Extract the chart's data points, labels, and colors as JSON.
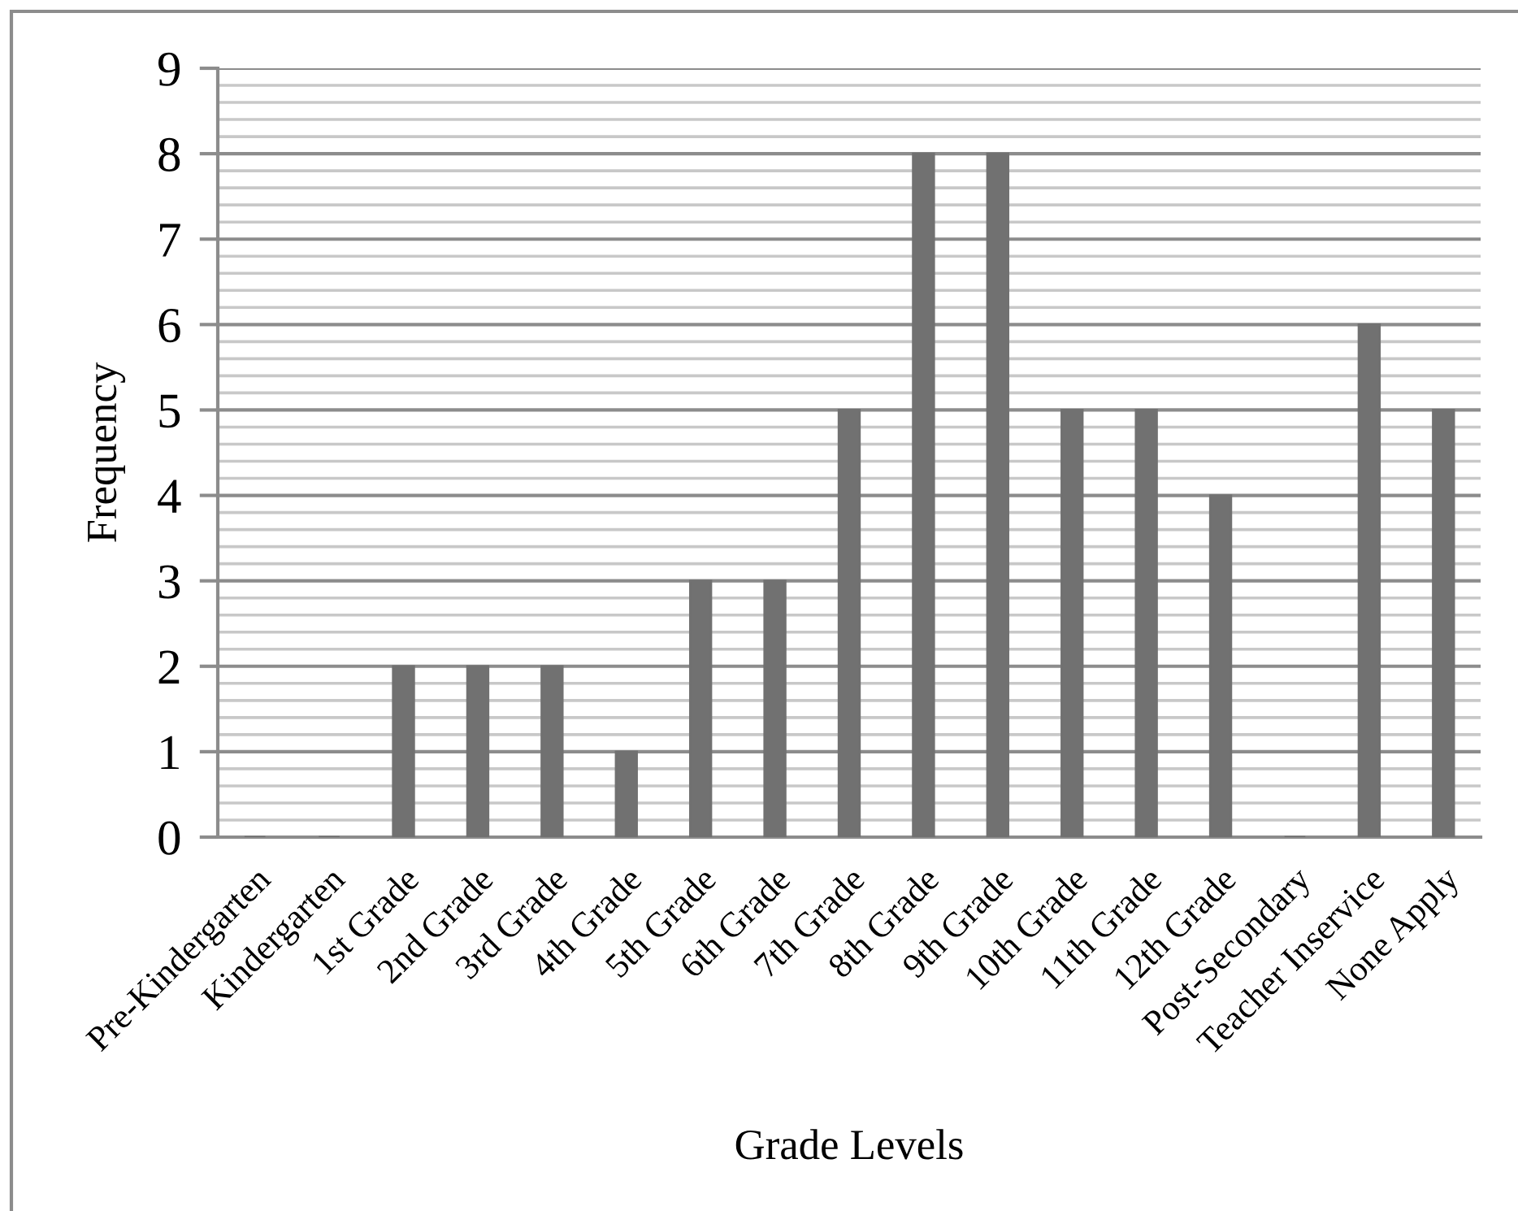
{
  "chart_data": {
    "type": "bar",
    "xlabel": "Grade Levels",
    "ylabel": "Frequency",
    "categories": [
      "Pre-Kindergarten",
      "Kindergarten",
      "1st Grade",
      "2nd Grade",
      "3rd Grade",
      "4th Grade",
      "5th Grade",
      "6th Grade",
      "7th Grade",
      "8th Grade",
      "9th Grade",
      "10th Grade",
      "11th Grade",
      "12th Grade",
      "Post-Secondary",
      "Teacher Inservice",
      "None Apply"
    ],
    "values": [
      0,
      0,
      2,
      2,
      2,
      1,
      3,
      3,
      5,
      8,
      8,
      5,
      5,
      4,
      0,
      6,
      5
    ],
    "color": "#717171",
    "ylim": [
      0,
      9
    ],
    "yticks": [
      0,
      {
        "value": 0.2,
        "label": null
      },
      {
        "value": 0.4,
        "label": null
      },
      {
        "value": 0.6,
        "label": null
      },
      {
        "value": 0.8,
        "label": null
      },
      1,
      {
        "value": 1.2,
        "label": null
      },
      {
        "value": 1.4,
        "label": null
      },
      {
        "value": 1.6,
        "label": null
      },
      {
        "value": 1.8,
        "label": null
      },
      2,
      {
        "value": 2.2,
        "label": null
      },
      {
        "value": 2.4,
        "label": null
      },
      {
        "value": 2.6,
        "label": null
      },
      {
        "value": 2.8,
        "label": null
      },
      3,
      {
        "value": 3.2,
        "label": null
      },
      {
        "value": 3.4,
        "label": null
      },
      {
        "value": 3.6,
        "label": null
      },
      {
        "value": 3.8,
        "label": null
      },
      4,
      {
        "value": 4.2,
        "label": null
      },
      {
        "value": 4.4,
        "label": null
      },
      {
        "value": 4.6,
        "label": null
      },
      {
        "value": 4.8,
        "label": null
      },
      5,
      {
        "value": 5.2,
        "label": null
      },
      {
        "value": 5.4,
        "label": null
      },
      {
        "value": 5.6,
        "label": null
      },
      {
        "value": 5.8,
        "label": null
      },
      6,
      {
        "value": 6.2,
        "label": null
      },
      {
        "value": 6.4,
        "label": null
      },
      {
        "value": 6.6,
        "label": null
      },
      {
        "value": 6.8,
        "label": null
      },
      7,
      {
        "value": 7.2,
        "label": null
      },
      {
        "value": 7.4,
        "label": null
      },
      {
        "value": 7.6,
        "label": null
      },
      {
        "value": 7.8,
        "label": null
      },
      8,
      {
        "value": 8.2,
        "label": null
      },
      {
        "value": 8.4,
        "label": null
      },
      {
        "value": 8.6,
        "label": null
      },
      {
        "value": 8.8,
        "label": null
      },
      9
    ],
    "grid": "y"
  }
}
